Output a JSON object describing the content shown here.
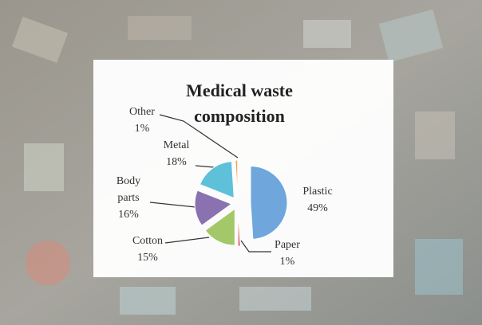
{
  "chart_data": {
    "type": "pie",
    "title": "Medical waste composition",
    "categories": [
      "Plastic",
      "Paper",
      "Cotton",
      "Body parts",
      "Metal",
      "Other"
    ],
    "values": [
      49,
      1,
      15,
      16,
      18,
      1
    ],
    "value_labels": [
      "49%",
      "1%",
      "15%",
      "16%",
      "18%",
      "1%"
    ],
    "colors": [
      "#6fa6dc",
      "#d9534f",
      "#a3c86a",
      "#8a72b0",
      "#5fc0da",
      "#f5a05a"
    ]
  }
}
